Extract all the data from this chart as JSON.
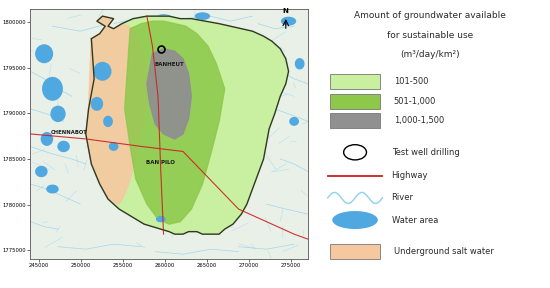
{
  "legend_title_line1": "Amount of groundwater available",
  "legend_title_line2": "for sustainable use",
  "legend_title_line3": "(m³/day/km²)",
  "legend_items": [
    {
      "label": "101-500",
      "color": "#c8f0a0"
    },
    {
      "label": "501-1,000",
      "color": "#8dc84a"
    },
    {
      "label": "1,000-1,500",
      "color": "#909090"
    }
  ],
  "symbol_items": [
    {
      "label": "Test well drilling"
    },
    {
      "label": "Highway"
    },
    {
      "label": "River"
    },
    {
      "label": "Water area"
    },
    {
      "label": "Underground salt water"
    }
  ],
  "map_colors": {
    "bg": "#e8f0e8",
    "river_color": "#90d0f0",
    "blue_water": "#50a8e0",
    "peach": "#f5c8a0",
    "border": "#303828",
    "highway_color": "#cc2020",
    "light_green": "#d4edb0",
    "mid_green": "#8dc84a",
    "gray_zone": "#909090",
    "tick_color": "#555555"
  },
  "xtick_labels": [
    "245000",
    "250000",
    "255000",
    "260000",
    "265000",
    "270000",
    "275000"
  ],
  "ytick_labels": [
    "1775000",
    "1780000",
    "1785000",
    "1790000",
    "1795000",
    "1800000"
  ],
  "fig_width": 5.5,
  "fig_height": 2.88,
  "dpi": 100
}
